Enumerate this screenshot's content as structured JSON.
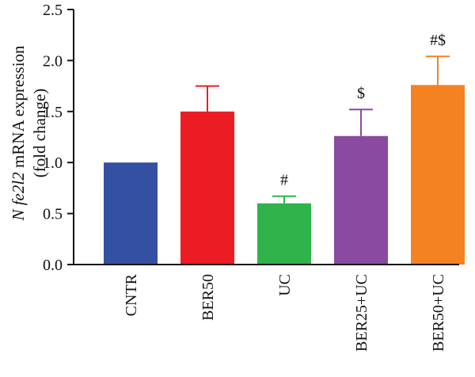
{
  "chart_data": {
    "type": "bar",
    "ylabel": {
      "line1_italic": "N fe2l2",
      "line1_rest": " mRNA expression",
      "line2": "(fold change)"
    },
    "ylim": [
      0,
      2.5
    ],
    "yticks": [
      "0.0",
      "0.5",
      "1.0",
      "1.5",
      "2.0",
      "2.5"
    ],
    "grid": false,
    "categories": [
      "CNTR",
      "BER50",
      "UC",
      "BER25+UC",
      "BER50+UC"
    ],
    "values": [
      1.0,
      1.5,
      0.6,
      1.26,
      1.76
    ],
    "errors": [
      0.0,
      0.25,
      0.07,
      0.26,
      0.28
    ],
    "annotations": [
      "",
      "",
      "#",
      "$",
      "#$"
    ],
    "colors": [
      "#3450a2",
      "#ec1c24",
      "#2fb34a",
      "#8a4a9f",
      "#f58220"
    ]
  }
}
